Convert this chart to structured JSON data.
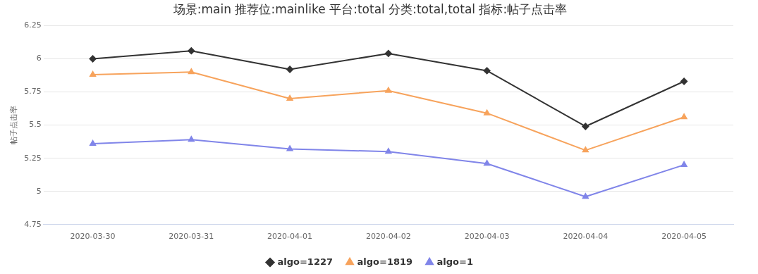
{
  "chart_data": {
    "type": "line",
    "title": "场景:main 推荐位:mainlike 平台:total 分类:total,total 指标:帖子点击率",
    "ylabel": "帖子点击率",
    "categories": [
      "2020-03-30",
      "2020-03-31",
      "2020-04-01",
      "2020-04-02",
      "2020-04-03",
      "2020-04-04",
      "2020-04-05"
    ],
    "series": [
      {
        "name": "algo=1227",
        "color": "#333333",
        "marker": "diamond",
        "values": [
          6.0,
          6.06,
          5.92,
          6.04,
          5.91,
          5.49,
          5.83
        ]
      },
      {
        "name": "algo=1819",
        "color": "#f7a35c",
        "marker": "triangle",
        "values": [
          5.88,
          5.9,
          5.7,
          5.76,
          5.59,
          5.31,
          5.56
        ]
      },
      {
        "name": "algo=1",
        "color": "#8085e9",
        "marker": "triangle",
        "values": [
          5.36,
          5.39,
          5.32,
          5.3,
          5.21,
          4.96,
          5.2
        ]
      }
    ],
    "ylim": [
      4.75,
      6.25
    ],
    "yticks": [
      4.75,
      5,
      5.25,
      5.5,
      5.75,
      6,
      6.25
    ],
    "grid": "y",
    "legend": "bottom",
    "line_style": "solid"
  }
}
